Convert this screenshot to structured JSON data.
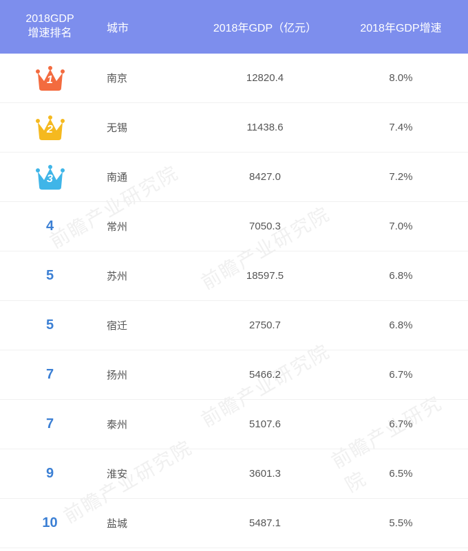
{
  "header": {
    "bg_color": "#7d8eed",
    "text_color": "#ffffff",
    "col_rank_line1": "2018GDP",
    "col_rank_line2": "增速排名",
    "col_city": "城市",
    "col_gdp": "2018年GDP（亿元）",
    "col_growth": "2018年GDP增速"
  },
  "row_text_color": "#555555",
  "rank_num_color": "#3b7fd4",
  "row_border_color": "#f0f0f0",
  "crown_colors": {
    "1": "#f36b3f",
    "2": "#f5b91f",
    "3": "#3fb5e8"
  },
  "rows": [
    {
      "rank": "1",
      "crown": true,
      "crown_color": "#f36b3f",
      "city": "南京",
      "gdp": "12820.4",
      "growth": "8.0%"
    },
    {
      "rank": "2",
      "crown": true,
      "crown_color": "#f5b91f",
      "city": "无锡",
      "gdp": "11438.6",
      "growth": "7.4%"
    },
    {
      "rank": "3",
      "crown": true,
      "crown_color": "#3fb5e8",
      "city": "南通",
      "gdp": "8427.0",
      "growth": "7.2%"
    },
    {
      "rank": "4",
      "crown": false,
      "city": "常州",
      "gdp": "7050.3",
      "growth": "7.0%"
    },
    {
      "rank": "5",
      "crown": false,
      "city": "苏州",
      "gdp": "18597.5",
      "growth": "6.8%"
    },
    {
      "rank": "5",
      "crown": false,
      "city": "宿迁",
      "gdp": "2750.7",
      "growth": "6.8%"
    },
    {
      "rank": "7",
      "crown": false,
      "city": "扬州",
      "gdp": "5466.2",
      "growth": "6.7%"
    },
    {
      "rank": "7",
      "crown": false,
      "city": "泰州",
      "gdp": "5107.6",
      "growth": "6.7%"
    },
    {
      "rank": "9",
      "crown": false,
      "city": "淮安",
      "gdp": "3601.3",
      "growth": "6.5%"
    },
    {
      "rank": "10",
      "crown": false,
      "city": "盐城",
      "gdp": "5487.1",
      "growth": "5.5%"
    }
  ],
  "watermark_text": "前瞻产业研究院"
}
